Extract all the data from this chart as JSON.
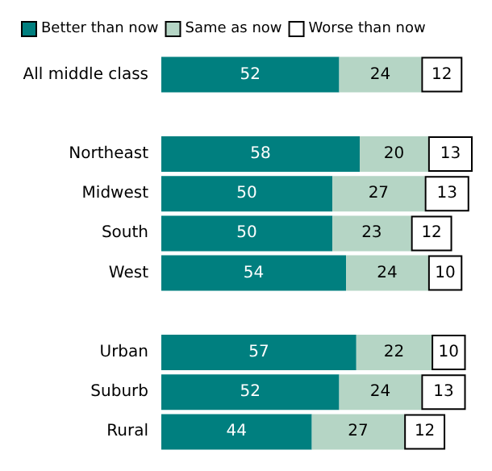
{
  "chart_data": {
    "type": "bar",
    "orientation": "horizontal",
    "stacked": true,
    "data_labels": true,
    "legend": "top",
    "categories": [
      "All middle class",
      null,
      "Northeast",
      "Midwest",
      "South",
      "West",
      null,
      "Urban",
      "Suburb",
      "Rural"
    ],
    "series": [
      {
        "name": "Better than now",
        "color": "#007f7f",
        "values": [
          52,
          null,
          58,
          50,
          50,
          54,
          null,
          57,
          52,
          44
        ]
      },
      {
        "name": "Same as now",
        "color": "#b5d5c5",
        "values": [
          24,
          null,
          20,
          27,
          23,
          24,
          null,
          22,
          24,
          27
        ]
      },
      {
        "name": "Worse than now",
        "color": "#ffffff",
        "values": [
          12,
          null,
          13,
          13,
          12,
          10,
          null,
          10,
          13,
          12
        ]
      }
    ]
  }
}
